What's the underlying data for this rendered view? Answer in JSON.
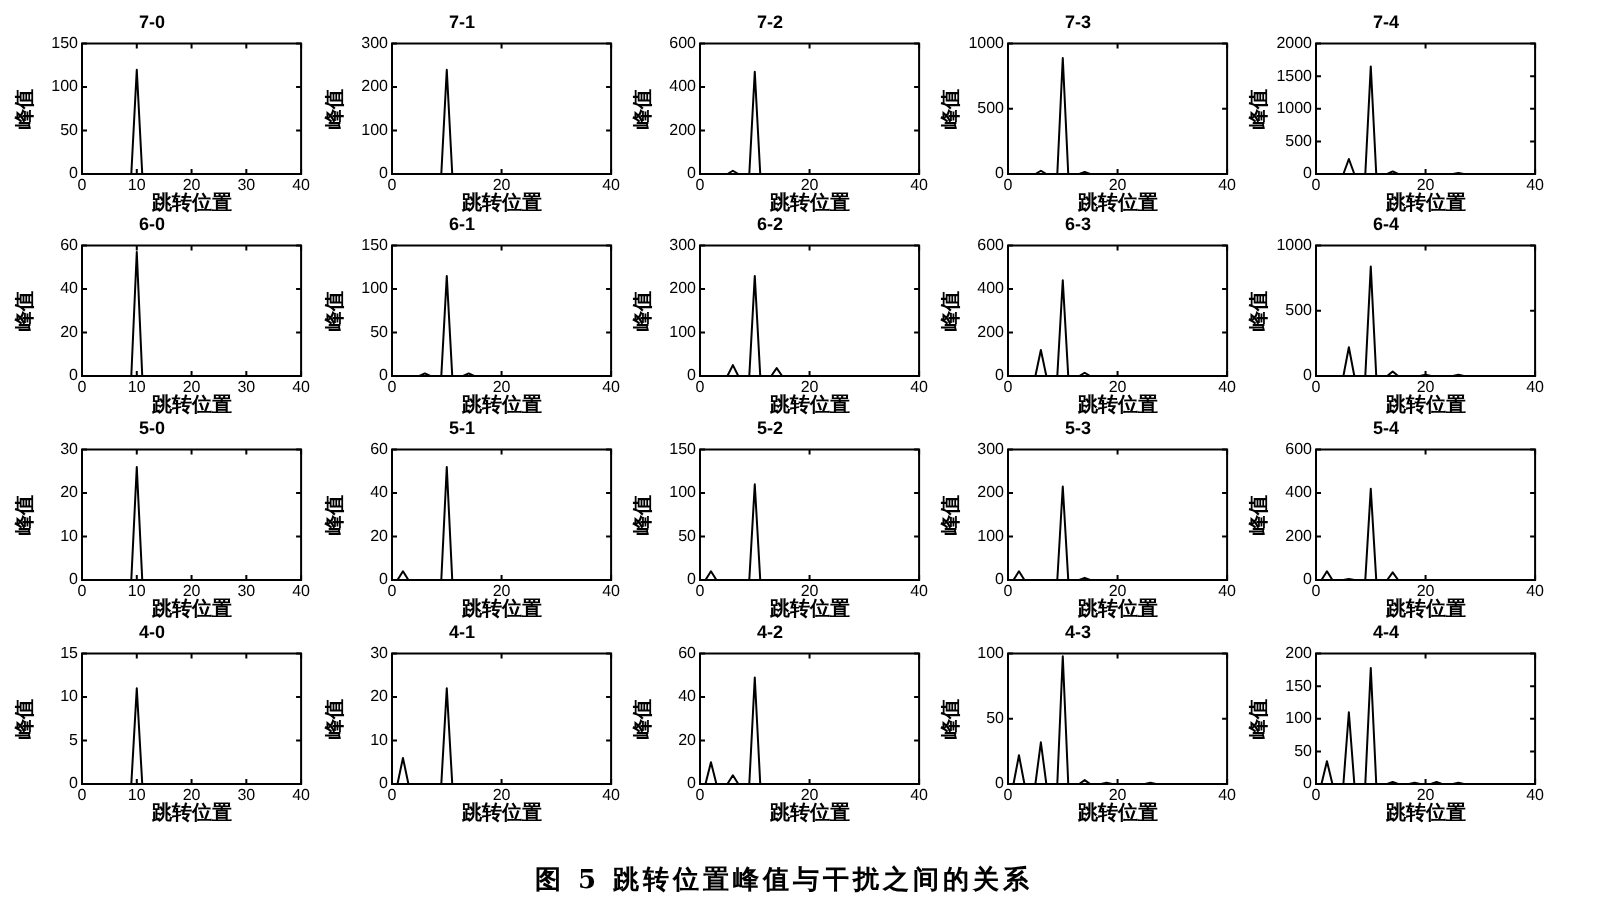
{
  "chart_data": [
    {
      "type": "line",
      "title": "7-0",
      "xlabel": "跳转位置",
      "ylabel": "峰值",
      "series": [
        {
          "color": "#000000",
          "x": [
            0,
            9,
            10,
            11,
            40
          ],
          "values": [
            0,
            0,
            120,
            0,
            0
          ]
        }
      ],
      "xlim": [
        0,
        40
      ],
      "xticks": [
        0,
        10,
        20,
        30,
        40
      ],
      "ylim": [
        0,
        150
      ],
      "yticks": [
        0,
        50,
        100,
        150
      ]
    },
    {
      "type": "line",
      "title": "7-1",
      "xlabel": "跳转位置",
      "ylabel": "峰值",
      "series": [
        {
          "color": "#000000",
          "x": [
            0,
            9,
            10,
            11,
            40
          ],
          "values": [
            0,
            0,
            240,
            0,
            0
          ]
        }
      ],
      "xlim": [
        0,
        40
      ],
      "xticks": [
        0,
        20,
        40
      ],
      "ylim": [
        0,
        300
      ],
      "yticks": [
        0,
        100,
        200,
        300
      ]
    },
    {
      "type": "line",
      "title": "7-2",
      "xlabel": "跳转位置",
      "ylabel": "峰值",
      "series": [
        {
          "color": "#000000",
          "x": [
            0,
            5,
            6,
            7,
            9,
            10,
            11,
            40
          ],
          "values": [
            0,
            0,
            15,
            0,
            0,
            470,
            0,
            0
          ]
        }
      ],
      "xlim": [
        0,
        40
      ],
      "xticks": [
        0,
        20,
        40
      ],
      "ylim": [
        0,
        600
      ],
      "yticks": [
        0,
        200,
        400,
        600
      ]
    },
    {
      "type": "line",
      "title": "7-3",
      "xlabel": "跳转位置",
      "ylabel": "峰值",
      "series": [
        {
          "color": "#000000",
          "x": [
            0,
            5,
            6,
            7,
            9,
            10,
            11,
            13,
            14,
            15,
            40
          ],
          "values": [
            0,
            0,
            25,
            0,
            0,
            890,
            0,
            0,
            15,
            0,
            0
          ]
        }
      ],
      "xlim": [
        0,
        40
      ],
      "xticks": [
        0,
        20,
        40
      ],
      "ylim": [
        0,
        1000
      ],
      "yticks": [
        0,
        500,
        1000
      ]
    },
    {
      "type": "line",
      "title": "7-4",
      "xlabel": "跳转位置",
      "ylabel": "峰值",
      "series": [
        {
          "color": "#000000",
          "x": [
            0,
            5,
            6,
            7,
            9,
            10,
            11,
            13,
            14,
            15,
            25,
            26,
            27,
            40
          ],
          "values": [
            0,
            0,
            230,
            0,
            0,
            1650,
            0,
            0,
            40,
            0,
            0,
            15,
            0,
            0
          ]
        }
      ],
      "xlim": [
        0,
        40
      ],
      "xticks": [
        0,
        20,
        40
      ],
      "ylim": [
        0,
        2000
      ],
      "yticks": [
        0,
        500,
        1000,
        1500,
        2000
      ]
    },
    {
      "type": "line",
      "title": "6-0",
      "xlabel": "跳转位置",
      "ylabel": "峰值",
      "series": [
        {
          "color": "#000000",
          "x": [
            0,
            9,
            10,
            11,
            40
          ],
          "values": [
            0,
            0,
            57,
            0,
            0
          ]
        }
      ],
      "xlim": [
        0,
        40
      ],
      "xticks": [
        0,
        10,
        20,
        30,
        40
      ],
      "ylim": [
        0,
        60
      ],
      "yticks": [
        0,
        20,
        40,
        60
      ]
    },
    {
      "type": "line",
      "title": "6-1",
      "xlabel": "跳转位置",
      "ylabel": "峰值",
      "series": [
        {
          "color": "#000000",
          "x": [
            0,
            5,
            6,
            7,
            9,
            10,
            11,
            13,
            14,
            15,
            40
          ],
          "values": [
            0,
            0,
            3,
            0,
            0,
            115,
            0,
            0,
            3,
            0,
            0
          ]
        }
      ],
      "xlim": [
        0,
        40
      ],
      "xticks": [
        0,
        20,
        40
      ],
      "ylim": [
        0,
        150
      ],
      "yticks": [
        0,
        50,
        100,
        150
      ]
    },
    {
      "type": "line",
      "title": "6-2",
      "xlabel": "跳转位置",
      "ylabel": "峰值",
      "series": [
        {
          "color": "#000000",
          "x": [
            0,
            5,
            6,
            7,
            9,
            10,
            11,
            13,
            14,
            15,
            40
          ],
          "values": [
            0,
            0,
            25,
            0,
            0,
            230,
            0,
            0,
            18,
            0,
            0
          ]
        }
      ],
      "xlim": [
        0,
        40
      ],
      "xticks": [
        0,
        20,
        40
      ],
      "ylim": [
        0,
        300
      ],
      "yticks": [
        0,
        100,
        200,
        300
      ]
    },
    {
      "type": "line",
      "title": "6-3",
      "xlabel": "跳转位置",
      "ylabel": "峰值",
      "series": [
        {
          "color": "#000000",
          "x": [
            0,
            5,
            6,
            7,
            9,
            10,
            11,
            13,
            14,
            15,
            40
          ],
          "values": [
            0,
            0,
            120,
            0,
            0,
            440,
            0,
            0,
            15,
            0,
            0
          ]
        }
      ],
      "xlim": [
        0,
        40
      ],
      "xticks": [
        0,
        20,
        40
      ],
      "ylim": [
        0,
        600
      ],
      "yticks": [
        0,
        200,
        400,
        600
      ]
    },
    {
      "type": "line",
      "title": "6-4",
      "xlabel": "跳转位置",
      "ylabel": "峰值",
      "series": [
        {
          "color": "#000000",
          "x": [
            0,
            5,
            6,
            7,
            9,
            10,
            11,
            13,
            14,
            15,
            19,
            20,
            21,
            25,
            26,
            27,
            40
          ],
          "values": [
            0,
            0,
            220,
            0,
            0,
            840,
            0,
            0,
            35,
            0,
            0,
            10,
            0,
            0,
            10,
            0,
            0
          ]
        }
      ],
      "xlim": [
        0,
        40
      ],
      "xticks": [
        0,
        20,
        40
      ],
      "ylim": [
        0,
        1000
      ],
      "yticks": [
        0,
        500,
        1000
      ]
    },
    {
      "type": "line",
      "title": "5-0",
      "xlabel": "跳转位置",
      "ylabel": "峰值",
      "series": [
        {
          "color": "#000000",
          "x": [
            0,
            9,
            10,
            11,
            40
          ],
          "values": [
            0,
            0,
            26,
            0,
            0
          ]
        }
      ],
      "xlim": [
        0,
        40
      ],
      "xticks": [
        0,
        10,
        20,
        30,
        40
      ],
      "ylim": [
        0,
        30
      ],
      "yticks": [
        0,
        10,
        20,
        30
      ]
    },
    {
      "type": "line",
      "title": "5-1",
      "xlabel": "跳转位置",
      "ylabel": "峰值",
      "series": [
        {
          "color": "#000000",
          "x": [
            0,
            1,
            2,
            3,
            9,
            10,
            11,
            40
          ],
          "values": [
            0,
            0,
            4,
            0,
            0,
            52,
            0,
            0
          ]
        }
      ],
      "xlim": [
        0,
        40
      ],
      "xticks": [
        0,
        20,
        40
      ],
      "ylim": [
        0,
        60
      ],
      "yticks": [
        0,
        20,
        40,
        60
      ]
    },
    {
      "type": "line",
      "title": "5-2",
      "xlabel": "跳转位置",
      "ylabel": "峰值",
      "series": [
        {
          "color": "#000000",
          "x": [
            0,
            1,
            2,
            3,
            9,
            10,
            11,
            40
          ],
          "values": [
            0,
            0,
            10,
            0,
            0,
            110,
            0,
            0
          ]
        }
      ],
      "xlim": [
        0,
        40
      ],
      "xticks": [
        0,
        20,
        40
      ],
      "ylim": [
        0,
        150
      ],
      "yticks": [
        0,
        50,
        100,
        150
      ]
    },
    {
      "type": "line",
      "title": "5-3",
      "xlabel": "跳转位置",
      "ylabel": "峰值",
      "series": [
        {
          "color": "#000000",
          "x": [
            0,
            1,
            2,
            3,
            9,
            10,
            11,
            13,
            14,
            15,
            40
          ],
          "values": [
            0,
            0,
            20,
            0,
            0,
            215,
            0,
            0,
            5,
            0,
            0
          ]
        }
      ],
      "xlim": [
        0,
        40
      ],
      "xticks": [
        0,
        20,
        40
      ],
      "ylim": [
        0,
        300
      ],
      "yticks": [
        0,
        100,
        200,
        300
      ]
    },
    {
      "type": "line",
      "title": "5-4",
      "xlabel": "跳转位置",
      "ylabel": "峰值",
      "series": [
        {
          "color": "#000000",
          "x": [
            0,
            1,
            2,
            3,
            5,
            6,
            7,
            9,
            10,
            11,
            13,
            14,
            15,
            40
          ],
          "values": [
            0,
            0,
            40,
            0,
            0,
            5,
            0,
            0,
            420,
            0,
            0,
            35,
            0,
            0
          ]
        }
      ],
      "xlim": [
        0,
        40
      ],
      "xticks": [
        0,
        20,
        40
      ],
      "ylim": [
        0,
        600
      ],
      "yticks": [
        0,
        200,
        400,
        600
      ]
    },
    {
      "type": "line",
      "title": "4-0",
      "xlabel": "跳转位置",
      "ylabel": "峰值",
      "series": [
        {
          "color": "#000000",
          "x": [
            0,
            9,
            10,
            11,
            40
          ],
          "values": [
            0,
            0,
            11,
            0,
            0
          ]
        }
      ],
      "xlim": [
        0,
        40
      ],
      "xticks": [
        0,
        10,
        20,
        30,
        40
      ],
      "ylim": [
        0,
        15
      ],
      "yticks": [
        0,
        5,
        10,
        15
      ]
    },
    {
      "type": "line",
      "title": "4-1",
      "xlabel": "跳转位置",
      "ylabel": "峰值",
      "series": [
        {
          "color": "#000000",
          "x": [
            0,
            1,
            2,
            3,
            9,
            10,
            11,
            40
          ],
          "values": [
            0,
            0,
            6,
            0,
            0,
            22,
            0,
            0
          ]
        }
      ],
      "xlim": [
        0,
        40
      ],
      "xticks": [
        0,
        20,
        40
      ],
      "ylim": [
        0,
        30
      ],
      "yticks": [
        0,
        10,
        20,
        30
      ]
    },
    {
      "type": "line",
      "title": "4-2",
      "xlabel": "跳转位置",
      "ylabel": "峰值",
      "series": [
        {
          "color": "#000000",
          "x": [
            0,
            1,
            2,
            3,
            5,
            6,
            7,
            9,
            10,
            11,
            40
          ],
          "values": [
            0,
            0,
            10,
            0,
            0,
            4,
            0,
            0,
            49,
            0,
            0
          ]
        }
      ],
      "xlim": [
        0,
        40
      ],
      "xticks": [
        0,
        20,
        40
      ],
      "ylim": [
        0,
        60
      ],
      "yticks": [
        0,
        20,
        40,
        60
      ]
    },
    {
      "type": "line",
      "title": "4-3",
      "xlabel": "跳转位置",
      "ylabel": "峰值",
      "series": [
        {
          "color": "#000000",
          "x": [
            0,
            1,
            2,
            3,
            5,
            6,
            7,
            9,
            10,
            11,
            13,
            14,
            15,
            17,
            18,
            19,
            25,
            26,
            27,
            40
          ],
          "values": [
            0,
            0,
            22,
            0,
            0,
            32,
            0,
            0,
            98,
            0,
            0,
            3,
            0,
            0,
            1,
            0,
            0,
            1,
            0,
            0
          ]
        }
      ],
      "xlim": [
        0,
        40
      ],
      "xticks": [
        0,
        20,
        40
      ],
      "ylim": [
        0,
        100
      ],
      "yticks": [
        0,
        50,
        100
      ]
    },
    {
      "type": "line",
      "title": "4-4",
      "xlabel": "跳转位置",
      "ylabel": "峰值",
      "series": [
        {
          "color": "#000000",
          "x": [
            0,
            1,
            2,
            3,
            5,
            6,
            7,
            9,
            10,
            11,
            13,
            14,
            15,
            17,
            18,
            19,
            21,
            22,
            23,
            25,
            26,
            27,
            40
          ],
          "values": [
            0,
            0,
            35,
            0,
            0,
            110,
            0,
            0,
            178,
            0,
            0,
            3,
            0,
            0,
            2,
            0,
            0,
            3,
            0,
            0,
            2,
            0,
            0
          ]
        }
      ],
      "xlim": [
        0,
        40
      ],
      "xticks": [
        0,
        20,
        40
      ],
      "ylim": [
        0,
        200
      ],
      "yticks": [
        0,
        50,
        100,
        150,
        200
      ],
      "annotations": [
        "图 5 跳转位置峰值与干扰之间的关系"
      ]
    }
  ]
}
